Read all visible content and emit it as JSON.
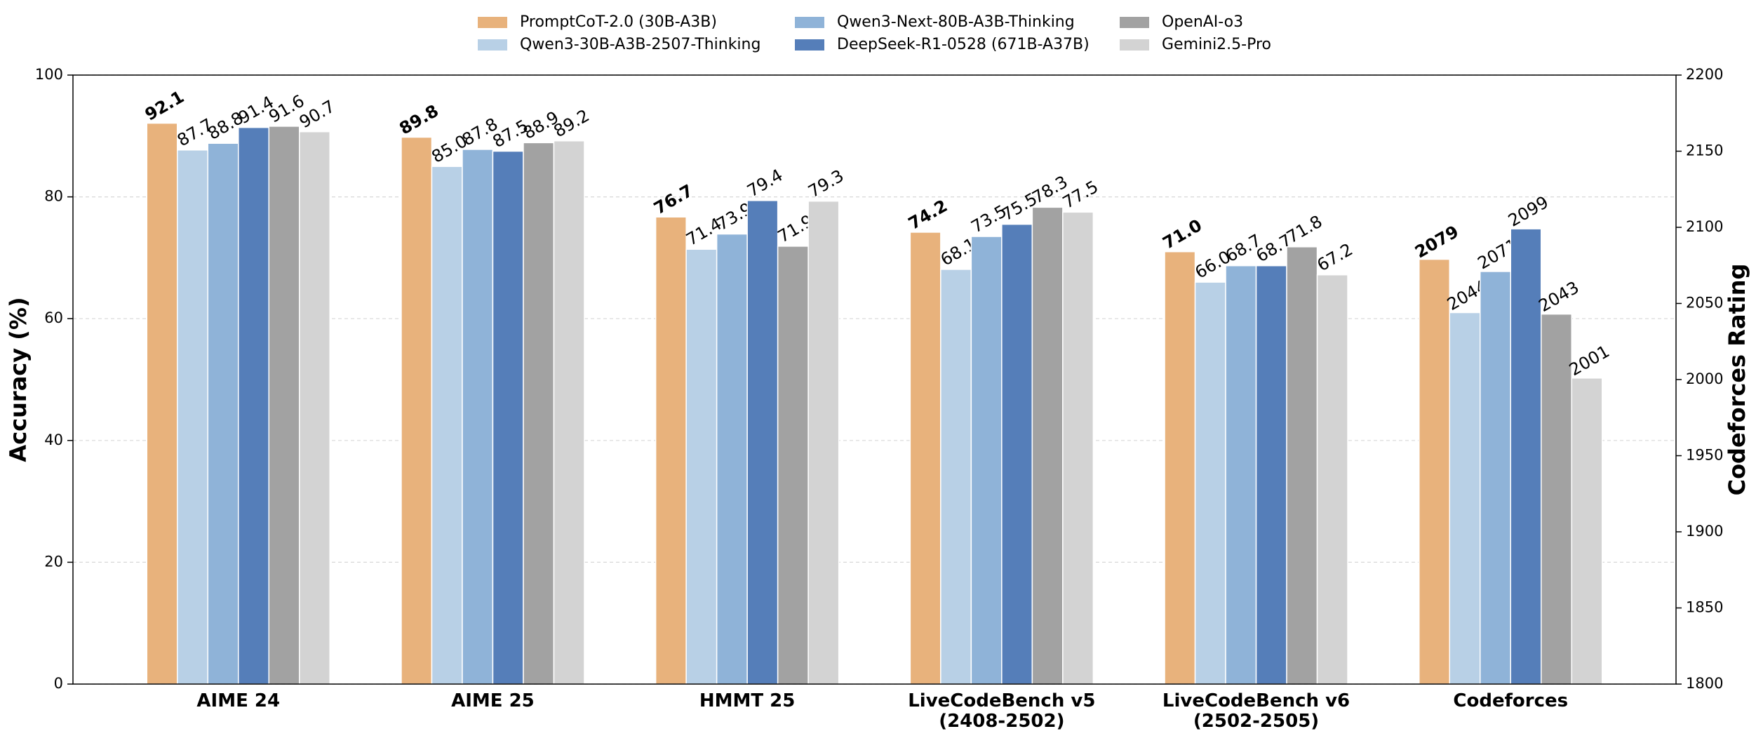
{
  "chart_data": {
    "type": "bar",
    "categories": [
      "AIME 24",
      "AIME 25",
      "HMMT 25",
      "LiveCodeBench v5\n(2408-2502)",
      "LiveCodeBench v6\n(2502-2505)",
      "Codeforces"
    ],
    "y2_categories": [
      "Codeforces"
    ],
    "y_label": "Accuracy (%)",
    "y2_label": "Codeforces Rating",
    "ylim": [
      0,
      100
    ],
    "yticks": [
      0,
      20,
      40,
      60,
      80,
      100
    ],
    "y2lim": [
      1800,
      2200
    ],
    "y2ticks": [
      1800,
      1850,
      1900,
      1950,
      2000,
      2050,
      2100,
      2150,
      2200
    ],
    "grid": true,
    "series": [
      {
        "name": "PromptCoT-2.0 (30B-A3B)",
        "color": "#e8b27c",
        "values": [
          92.1,
          89.8,
          76.7,
          74.2,
          71.0,
          2079
        ],
        "value_labels": [
          "92.1",
          "89.8",
          "76.7",
          "74.2",
          "71.0",
          "2079"
        ],
        "bold_labels": true
      },
      {
        "name": "Qwen3-30B-A3B-2507-Thinking",
        "color": "#b8d0e6",
        "values": [
          87.7,
          85.0,
          71.4,
          68.1,
          66.0,
          2044
        ],
        "value_labels": [
          "87.7",
          "85.0",
          "71.4",
          "68.1",
          "66.0",
          "2044"
        ]
      },
      {
        "name": "Qwen3-Next-80B-A3B-Thinking",
        "color": "#8fb3d8",
        "values": [
          88.8,
          87.8,
          73.9,
          73.5,
          68.7,
          2071
        ]
      },
      {
        "name": "DeepSeek-R1-0528 (671B-A37B)",
        "color": "#557eb9",
        "values": [
          91.4,
          87.5,
          79.4,
          75.5,
          68.7,
          2099
        ]
      },
      {
        "name": "OpenAI-o3",
        "color": "#a2a2a2",
        "values": [
          91.6,
          88.9,
          71.9,
          78.3,
          71.8,
          2043
        ]
      },
      {
        "name": "Gemini2.5-Pro",
        "color": "#d3d3d3",
        "values": [
          90.7,
          89.2,
          79.3,
          77.5,
          67.2,
          2001
        ]
      }
    ]
  }
}
